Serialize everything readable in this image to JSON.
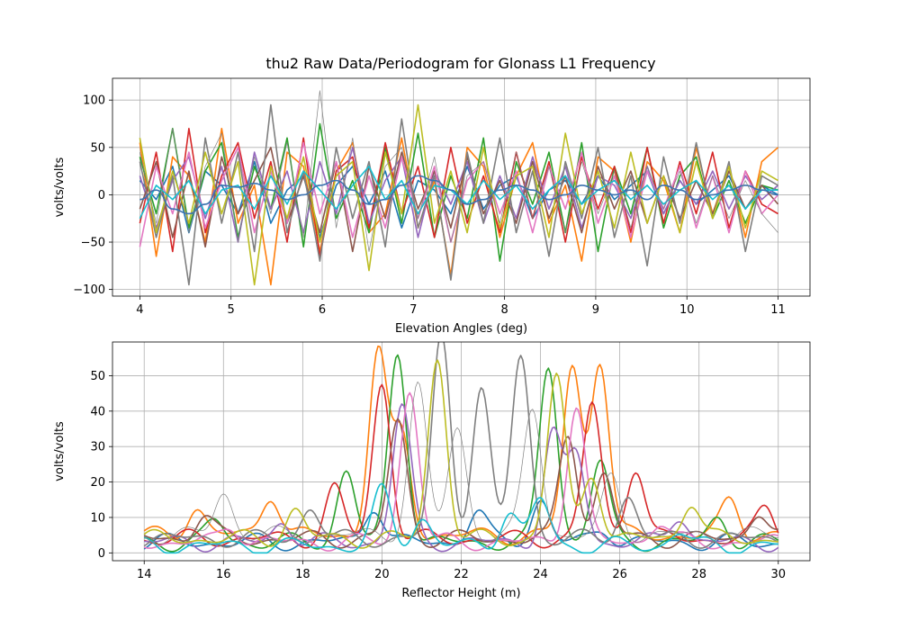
{
  "figure": {
    "title": "thu2 Raw Data/Periodogram for Glonass L1 Frequency"
  },
  "chart_data": [
    {
      "type": "line",
      "title": "thu2 Raw Data/Periodogram for Glonass L1 Frequency",
      "xlabel": "Elevation Angles (deg)",
      "ylabel": "volts/volts",
      "xlim": [
        3.7,
        11.35
      ],
      "ylim": [
        -107,
        123
      ],
      "xticks": [
        4,
        5,
        6,
        7,
        8,
        9,
        10,
        11
      ],
      "yticks": [
        -100,
        -50,
        0,
        50,
        100
      ],
      "grid": true,
      "x_range": [
        4.0,
        11.0
      ],
      "series": [
        {
          "color": "#1f77b4",
          "values": [
            15,
            -5,
            30,
            -40,
            25,
            10,
            -20,
            35,
            -30,
            5,
            20,
            -45,
            10,
            30,
            -10,
            25,
            -35,
            15,
            5,
            -20,
            30,
            -15,
            10,
            20,
            -25,
            5,
            15,
            -10,
            20,
            -5,
            10,
            25,
            -20,
            15,
            -10,
            5,
            20,
            -15,
            10,
            0
          ]
        },
        {
          "color": "#ff7f0e",
          "values": [
            55,
            -65,
            40,
            20,
            -50,
            70,
            -30,
            10,
            -95,
            45,
            30,
            -60,
            25,
            55,
            -40,
            -20,
            60,
            -35,
            15,
            -85,
            50,
            30,
            -45,
            20,
            55,
            -30,
            10,
            -70,
            40,
            25,
            -50,
            35,
            15,
            -40,
            50,
            -20,
            30,
            -45,
            35,
            50
          ]
        },
        {
          "color": "#2ca02c",
          "values": [
            40,
            -20,
            70,
            -35,
            25,
            55,
            -45,
            30,
            -15,
            60,
            -55,
            75,
            -25,
            15,
            -40,
            50,
            -30,
            65,
            -45,
            20,
            -25,
            60,
            -70,
            35,
            -10,
            45,
            -40,
            55,
            -60,
            30,
            -20,
            50,
            -35,
            20,
            40,
            -25,
            15,
            -30,
            10,
            5
          ]
        },
        {
          "color": "#d62728",
          "values": [
            -30,
            45,
            -60,
            70,
            -40,
            20,
            55,
            -25,
            35,
            -50,
            60,
            -65,
            25,
            40,
            -35,
            55,
            -20,
            30,
            -45,
            50,
            -30,
            20,
            -40,
            45,
            -25,
            35,
            -50,
            40,
            -15,
            30,
            -40,
            50,
            -30,
            35,
            -20,
            45,
            -35,
            25,
            -10,
            -20
          ]
        },
        {
          "color": "#9467bd",
          "values": [
            20,
            -35,
            15,
            40,
            -25,
            30,
            -50,
            45,
            -15,
            25,
            -40,
            35,
            -20,
            50,
            -30,
            15,
            40,
            -45,
            25,
            -10,
            35,
            -30,
            20,
            -25,
            40,
            -15,
            30,
            -35,
            20,
            10,
            -25,
            30,
            -20,
            15,
            -10,
            25,
            -15,
            20,
            -5,
            10
          ]
        },
        {
          "color": "#8c564b",
          "values": [
            -15,
            35,
            -45,
            25,
            -55,
            40,
            -20,
            15,
            50,
            -30,
            20,
            -40,
            35,
            -60,
            30,
            -25,
            45,
            -15,
            25,
            -35,
            40,
            -20,
            15,
            -30,
            35,
            -25,
            20,
            -40,
            30,
            -15,
            25,
            -30,
            20,
            -25,
            15,
            -20,
            25,
            -15,
            10,
            -10
          ]
        },
        {
          "color": "#e377c2",
          "values": [
            -55,
            30,
            -20,
            45,
            -35,
            15,
            50,
            -40,
            25,
            -30,
            55,
            -20,
            35,
            -45,
            20,
            -35,
            40,
            -25,
            30,
            -50,
            15,
            35,
            -20,
            25,
            -40,
            30,
            -15,
            45,
            -30,
            20,
            -45,
            25,
            -15,
            30,
            -35,
            20,
            -40,
            25,
            -20,
            0
          ]
        },
        {
          "color": "#7f7f7f",
          "values": [
            35,
            -45,
            20,
            -95,
            60,
            -30,
            45,
            -60,
            95,
            -40,
            25,
            -70,
            50,
            -25,
            35,
            -55,
            80,
            -35,
            20,
            -90,
            45,
            -30,
            60,
            -40,
            25,
            -65,
            35,
            -25,
            50,
            -45,
            20,
            -75,
            40,
            -30,
            55,
            -25,
            35,
            -60,
            20,
            10
          ]
        },
        {
          "color": "#bcbd22",
          "values": [
            60,
            -40,
            25,
            -30,
            45,
            -20,
            35,
            -95,
            30,
            -25,
            40,
            -50,
            20,
            35,
            -80,
            45,
            -20,
            95,
            -30,
            25,
            -40,
            50,
            -35,
            20,
            30,
            -45,
            65,
            -20,
            25,
            -35,
            45,
            -30,
            20,
            -40,
            35,
            -25,
            30,
            -35,
            25,
            15
          ]
        },
        {
          "color": "#17becf",
          "values": [
            -25,
            10,
            -5,
            15,
            -20,
            5,
            10,
            -15,
            20,
            -10,
            25,
            5,
            -15,
            10,
            30,
            -5,
            15,
            -20,
            10,
            5,
            -10,
            15,
            -5,
            10,
            -15,
            5,
            20,
            -10,
            5,
            15,
            -5,
            10,
            -10,
            5,
            15,
            -5,
            10,
            -15,
            5,
            5
          ]
        },
        {
          "color": "#3a72b0",
          "smooth": true,
          "values": [
            -5,
            5,
            -15,
            -20,
            -10,
            10,
            8,
            12,
            5,
            -5,
            0,
            10,
            15,
            5,
            -10,
            -5,
            10,
            20,
            15,
            5,
            -10,
            -5,
            5,
            10,
            5,
            -5,
            0,
            10,
            5,
            0,
            5,
            -5,
            10,
            5,
            -5,
            0,
            5,
            10,
            5,
            0
          ]
        },
        {
          "color": "#808080",
          "thin": true,
          "values": [
            45,
            -30,
            70,
            -40,
            30,
            65,
            -50,
            40,
            -20,
            55,
            -45,
            110,
            -35,
            60,
            -60,
            30,
            50,
            -25,
            40,
            -50,
            20,
            35,
            -30,
            45,
            -25,
            30,
            -40,
            35,
            -20,
            25,
            -35,
            30,
            -15,
            25,
            -30,
            20,
            -25,
            15,
            -20,
            -40
          ]
        }
      ]
    },
    {
      "type": "line",
      "title": "",
      "xlabel": "Reflector Height (m)",
      "ylabel": "volts/volts",
      "xlim": [
        13.2,
        30.8
      ],
      "ylim": [
        -2.2,
        59.5
      ],
      "xticks": [
        14,
        16,
        18,
        20,
        22,
        24,
        26,
        28,
        30
      ],
      "yticks": [
        0,
        10,
        20,
        30,
        40,
        50
      ],
      "grid": true,
      "x_range": [
        14,
        30
      ],
      "series": [
        {
          "color": "#1f77b4",
          "baseline": 3,
          "peaks": [
            [
              19.8,
              11
            ],
            [
              22.4,
              9
            ],
            [
              24.0,
              12
            ],
            [
              25.6,
              4
            ]
          ]
        },
        {
          "color": "#ff7f0e",
          "baseline": 5,
          "peaks": [
            [
              15.3,
              8
            ],
            [
              17.2,
              12
            ],
            [
              19.9,
              52
            ],
            [
              20.5,
              28
            ],
            [
              24.8,
              47
            ],
            [
              25.5,
              50
            ],
            [
              28.8,
              10
            ]
          ]
        },
        {
          "color": "#2ca02c",
          "baseline": 3,
          "peaks": [
            [
              15.8,
              6
            ],
            [
              19.1,
              20
            ],
            [
              20.4,
              54
            ],
            [
              24.2,
              50
            ],
            [
              25.5,
              23
            ],
            [
              28.5,
              7
            ]
          ]
        },
        {
          "color": "#d62728",
          "baseline": 4,
          "peaks": [
            [
              18.8,
              14
            ],
            [
              20.0,
              44
            ],
            [
              25.3,
              38
            ],
            [
              26.4,
              21
            ],
            [
              29.7,
              9
            ]
          ]
        },
        {
          "color": "#9467bd",
          "baseline": 3,
          "peaks": [
            [
              17.5,
              6
            ],
            [
              20.5,
              38
            ],
            [
              24.3,
              30
            ],
            [
              24.9,
              25
            ],
            [
              27.5,
              8
            ]
          ]
        },
        {
          "color": "#8c564b",
          "baseline": 4,
          "peaks": [
            [
              15.5,
              7
            ],
            [
              20.4,
              33
            ],
            [
              24.7,
              30
            ],
            [
              25.6,
              18
            ],
            [
              29.5,
              8
            ]
          ]
        },
        {
          "color": "#e377c2",
          "baseline": 3,
          "peaks": [
            [
              16.2,
              5
            ],
            [
              20.7,
              43
            ],
            [
              24.9,
              39
            ],
            [
              27.0,
              6
            ]
          ]
        },
        {
          "color": "#7f7f7f",
          "baseline": 4,
          "peaks": [
            [
              18.2,
              9
            ],
            [
              21.5,
              57
            ],
            [
              22.5,
              42
            ],
            [
              23.5,
              52
            ],
            [
              26.2,
              12
            ]
          ]
        },
        {
          "color": "#bcbd22",
          "baseline": 4,
          "peaks": [
            [
              17.8,
              8
            ],
            [
              21.4,
              51
            ],
            [
              24.4,
              46
            ],
            [
              25.3,
              19
            ],
            [
              27.8,
              11
            ]
          ]
        },
        {
          "color": "#17becf",
          "baseline": 2,
          "peaks": [
            [
              20.0,
              15
            ],
            [
              21.0,
              8
            ],
            [
              23.2,
              10
            ],
            [
              24.0,
              13
            ],
            [
              27.5,
              4
            ]
          ]
        },
        {
          "color": "#808080",
          "thin": true,
          "baseline": 5,
          "peaks": [
            [
              16.0,
              12
            ],
            [
              20.9,
              42
            ],
            [
              21.9,
              30
            ],
            [
              23.8,
              36
            ],
            [
              25.8,
              16
            ]
          ]
        }
      ]
    }
  ]
}
